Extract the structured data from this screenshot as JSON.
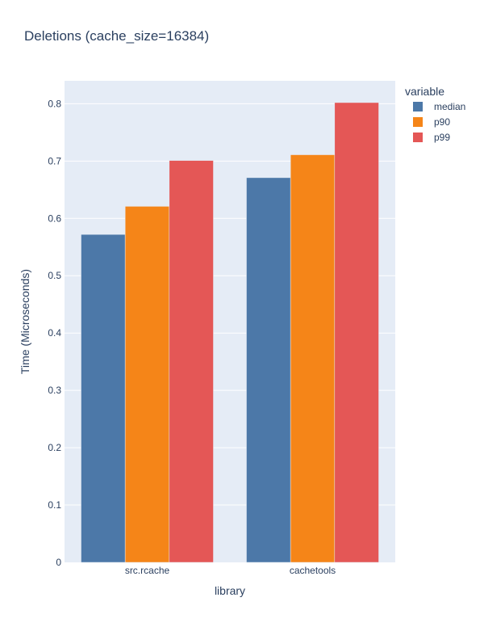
{
  "chart_data": {
    "type": "bar",
    "title": "Deletions (cache_size=16384)",
    "xlabel": "library",
    "ylabel": "Time (Microseconds)",
    "categories": [
      "src.rcache",
      "cachetools"
    ],
    "ylim": [
      0,
      0.84
    ],
    "yticks": [
      0,
      0.1,
      0.2,
      0.3,
      0.4,
      0.5,
      0.6,
      0.7,
      0.8
    ],
    "ytick_labels": [
      "0",
      "0.1",
      "0.2",
      "0.3",
      "0.4",
      "0.5",
      "0.6",
      "0.7",
      "0.8"
    ],
    "legend_title": "variable",
    "legend_position": "top-right",
    "grid": true,
    "series": [
      {
        "name": "median",
        "color": "#4c78a8",
        "values": [
          0.572,
          0.671
        ]
      },
      {
        "name": "p90",
        "color": "#f58518",
        "values": [
          0.621,
          0.711
        ]
      },
      {
        "name": "p99",
        "color": "#e45756",
        "values": [
          0.701,
          0.802
        ]
      }
    ]
  }
}
